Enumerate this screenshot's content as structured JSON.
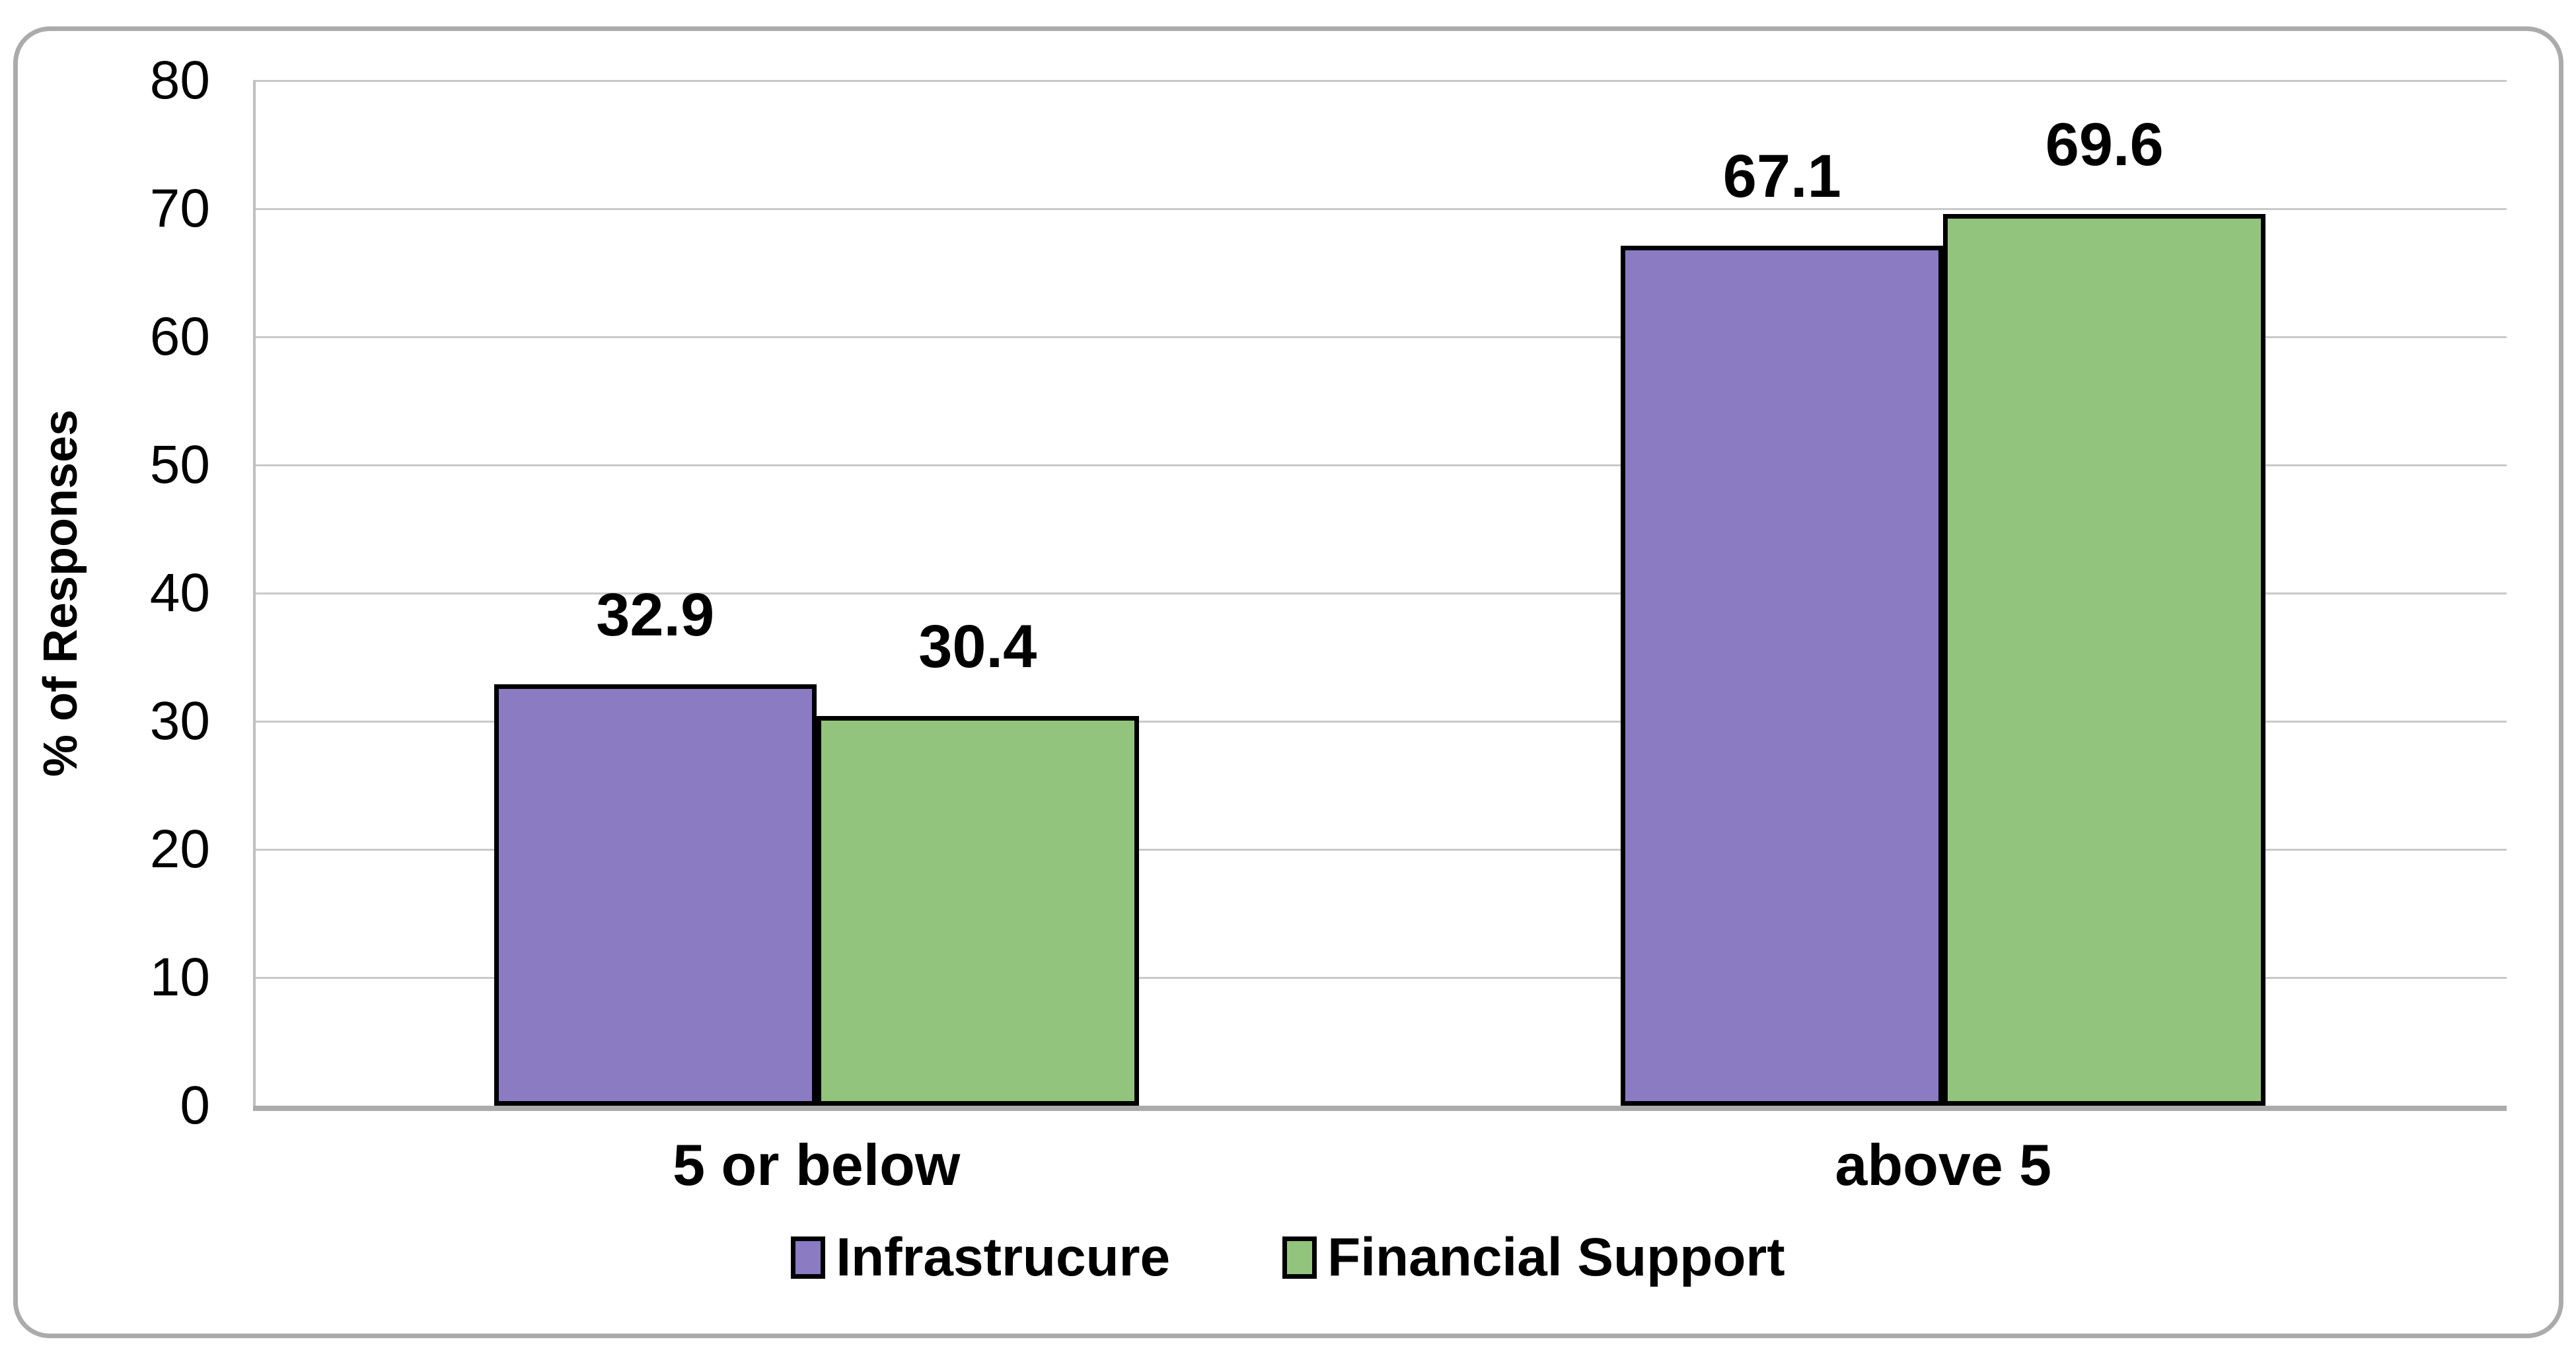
{
  "chart_data": {
    "type": "bar",
    "categories": [
      "5 or below",
      "above 5"
    ],
    "series": [
      {
        "name": "Infrastrucure",
        "color": "#8A7BC2",
        "values": [
          32.9,
          67.1
        ],
        "value_labels": [
          "32.9",
          "67.1"
        ]
      },
      {
        "name": "Financial Support",
        "color": "#92C47D",
        "values": [
          30.4,
          69.6
        ],
        "value_labels": [
          "30.4",
          "69.6"
        ]
      }
    ],
    "title": "",
    "xlabel": "",
    "ylabel": "% of Responses",
    "ylim": [
      0,
      80
    ],
    "yticks": [
      0,
      10,
      20,
      30,
      40,
      50,
      60,
      70,
      80
    ],
    "grid": true,
    "legend_position": "bottom-center",
    "bar_outline_color": "#000000",
    "gridline_color": "#C9C9C9",
    "axis_color": "#ABABAB"
  }
}
